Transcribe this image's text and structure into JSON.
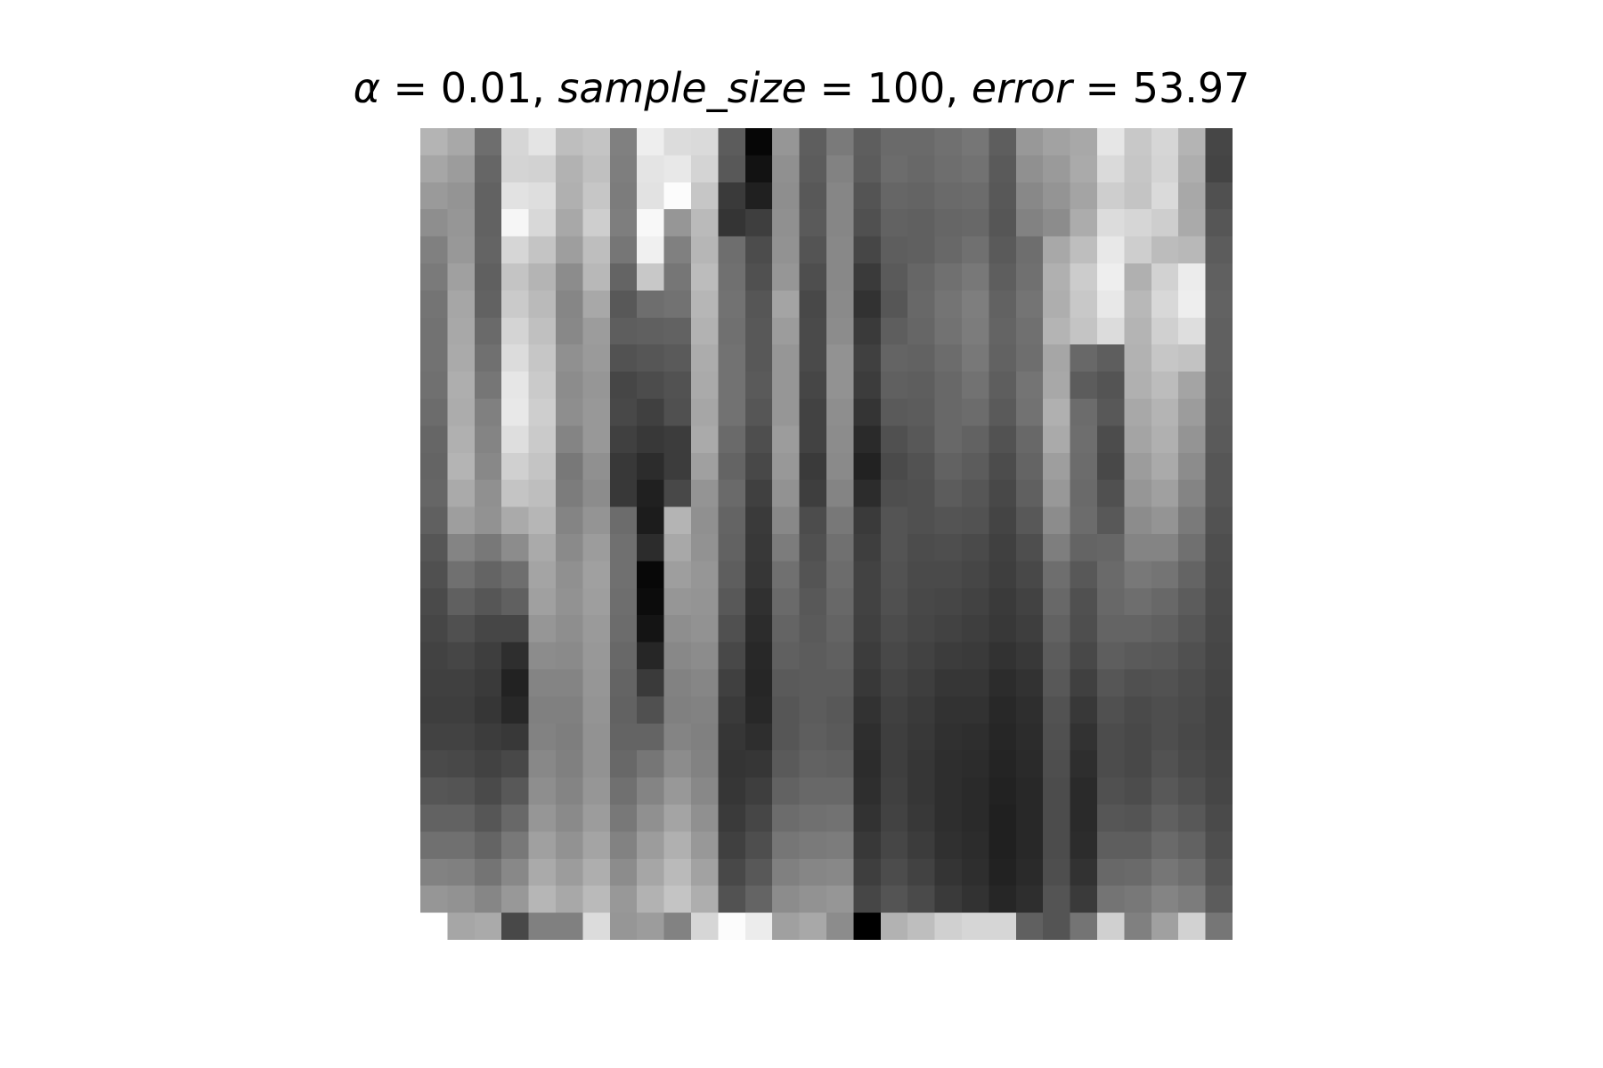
{
  "chart_data": {
    "type": "heatmap",
    "title": {
      "alpha_symbol": "α",
      "alpha_value": "0.01",
      "sample_size_name": "sample_size",
      "sample_size_value": "100",
      "error_name": "error",
      "error_value": "53.97"
    },
    "colormap": "gray",
    "axes": "off",
    "rows": 30,
    "cols": 30,
    "values": [
      [
        180,
        168,
        110,
        214,
        228,
        190,
        196,
        128,
        238,
        220,
        218,
        92,
        6,
        150,
        94,
        122,
        94,
        106,
        106,
        112,
        118,
        94,
        152,
        162,
        168,
        230,
        200,
        214,
        180,
        70
      ],
      [
        166,
        156,
        102,
        212,
        210,
        178,
        192,
        126,
        228,
        232,
        212,
        88,
        18,
        144,
        92,
        130,
        92,
        108,
        104,
        110,
        114,
        90,
        144,
        154,
        170,
        218,
        198,
        212,
        174,
        68
      ],
      [
        154,
        148,
        98,
        226,
        222,
        176,
        198,
        124,
        226,
        252,
        198,
        58,
        32,
        142,
        88,
        134,
        84,
        102,
        100,
        106,
        108,
        88,
        136,
        148,
        164,
        206,
        196,
        218,
        168,
        80
      ],
      [
        142,
        150,
        98,
        246,
        216,
        168,
        206,
        126,
        248,
        150,
        186,
        52,
        62,
        144,
        90,
        134,
        80,
        98,
        96,
        102,
        104,
        86,
        130,
        140,
        172,
        220,
        214,
        206,
        170,
        86
      ],
      [
        128,
        152,
        100,
        214,
        196,
        158,
        190,
        118,
        240,
        128,
        182,
        110,
        76,
        146,
        84,
        136,
        70,
        94,
        96,
        104,
        112,
        90,
        110,
        168,
        190,
        232,
        206,
        188,
        184,
        92
      ],
      [
        122,
        160,
        96,
        196,
        180,
        140,
        184,
        100,
        200,
        118,
        188,
        112,
        80,
        150,
        78,
        136,
        58,
        90,
        102,
        112,
        120,
        94,
        112,
        176,
        204,
        238,
        176,
        210,
        236,
        96
      ],
      [
        116,
        166,
        98,
        202,
        186,
        134,
        168,
        88,
        110,
        114,
        182,
        114,
        86,
        164,
        72,
        138,
        50,
        86,
        104,
        116,
        126,
        98,
        116,
        174,
        200,
        232,
        184,
        216,
        238,
        98
      ],
      [
        114,
        168,
        106,
        212,
        192,
        136,
        156,
        94,
        96,
        98,
        178,
        112,
        88,
        156,
        74,
        140,
        58,
        94,
        102,
        114,
        124,
        100,
        112,
        180,
        196,
        220,
        180,
        208,
        222,
        96
      ],
      [
        114,
        170,
        112,
        220,
        198,
        144,
        154,
        82,
        86,
        90,
        172,
        114,
        88,
        150,
        74,
        146,
        64,
        100,
        98,
        108,
        120,
        98,
        110,
        166,
        104,
        94,
        178,
        198,
        194,
        96
      ],
      [
        112,
        174,
        118,
        230,
        202,
        140,
        150,
        70,
        76,
        82,
        170,
        114,
        90,
        150,
        70,
        146,
        60,
        96,
        94,
        104,
        114,
        94,
        116,
        168,
        92,
        84,
        176,
        188,
        164,
        94
      ],
      [
        108,
        172,
        128,
        232,
        206,
        142,
        152,
        72,
        64,
        80,
        166,
        114,
        86,
        150,
        66,
        142,
        52,
        90,
        92,
        104,
        108,
        90,
        114,
        176,
        108,
        88,
        168,
        180,
        156,
        92
      ],
      [
        102,
        176,
        132,
        222,
        202,
        132,
        152,
        64,
        56,
        60,
        170,
        106,
        78,
        156,
        66,
        140,
        42,
        80,
        88,
        104,
        98,
        82,
        104,
        170,
        110,
        76,
        164,
        176,
        148,
        90
      ],
      [
        100,
        180,
        136,
        208,
        196,
        120,
        144,
        56,
        44,
        60,
        160,
        100,
        72,
        152,
        58,
        138,
        34,
        74,
        82,
        98,
        92,
        76,
        100,
        158,
        108,
        72,
        156,
        170,
        140,
        86
      ],
      [
        102,
        170,
        144,
        196,
        190,
        124,
        140,
        56,
        32,
        72,
        148,
        106,
        64,
        146,
        62,
        132,
        44,
        78,
        80,
        92,
        86,
        72,
        96,
        152,
        106,
        80,
        150,
        160,
        132,
        86
      ],
      [
        96,
        158,
        146,
        170,
        182,
        132,
        148,
        108,
        28,
        180,
        144,
        100,
        58,
        136,
        76,
        120,
        58,
        84,
        80,
        84,
        82,
        68,
        88,
        140,
        108,
        88,
        140,
        148,
        122,
        82
      ],
      [
        86,
        132,
        120,
        140,
        170,
        138,
        156,
        112,
        44,
        168,
        146,
        98,
        56,
        124,
        80,
        112,
        62,
        84,
        76,
        78,
        74,
        64,
        78,
        126,
        100,
        102,
        132,
        132,
        112,
        78
      ],
      [
        80,
        112,
        100,
        110,
        164,
        144,
        160,
        112,
        8,
        158,
        150,
        94,
        54,
        112,
        84,
        108,
        66,
        82,
        74,
        74,
        70,
        62,
        72,
        110,
        88,
        106,
        120,
        116,
        100,
        76
      ],
      [
        74,
        96,
        86,
        96,
        160,
        146,
        158,
        110,
        12,
        150,
        148,
        88,
        48,
        106,
        88,
        104,
        66,
        80,
        72,
        70,
        66,
        58,
        66,
        104,
        80,
        104,
        110,
        104,
        92,
        74
      ],
      [
        70,
        80,
        70,
        70,
        150,
        142,
        154,
        108,
        20,
        142,
        146,
        80,
        44,
        100,
        90,
        100,
        64,
        76,
        70,
        66,
        62,
        56,
        62,
        98,
        78,
        100,
        100,
        96,
        86,
        72
      ],
      [
        66,
        70,
        62,
        46,
        140,
        138,
        152,
        104,
        38,
        136,
        140,
        72,
        40,
        96,
        92,
        96,
        60,
        72,
        66,
        60,
        58,
        50,
        56,
        92,
        72,
        94,
        90,
        88,
        80,
        70
      ],
      [
        64,
        64,
        58,
        34,
        132,
        132,
        150,
        100,
        58,
        130,
        134,
        64,
        38,
        90,
        92,
        92,
        56,
        68,
        62,
        54,
        54,
        44,
        50,
        88,
        64,
        86,
        80,
        82,
        76,
        68
      ],
      [
        62,
        62,
        54,
        40,
        128,
        128,
        148,
        98,
        80,
        128,
        130,
        58,
        40,
        86,
        92,
        88,
        50,
        64,
        58,
        50,
        50,
        40,
        46,
        82,
        56,
        80,
        74,
        78,
        74,
        66
      ],
      [
        66,
        66,
        60,
        56,
        130,
        126,
        146,
        100,
        100,
        132,
        128,
        54,
        46,
        86,
        94,
        90,
        46,
        62,
        56,
        48,
        46,
        38,
        44,
        80,
        50,
        76,
        72,
        78,
        72,
        66
      ],
      [
        74,
        72,
        66,
        72,
        136,
        128,
        146,
        104,
        118,
        140,
        130,
        52,
        54,
        90,
        98,
        96,
        44,
        62,
        54,
        46,
        44,
        36,
        42,
        78,
        46,
        76,
        72,
        82,
        74,
        68
      ],
      [
        86,
        84,
        74,
        88,
        142,
        132,
        150,
        112,
        132,
        152,
        136,
        54,
        62,
        98,
        104,
        104,
        46,
        64,
        54,
        46,
        42,
        34,
        40,
        76,
        42,
        80,
        76,
        88,
        80,
        70
      ],
      [
        98,
        98,
        86,
        104,
        150,
        138,
        156,
        120,
        144,
        164,
        144,
        58,
        70,
        108,
        112,
        114,
        50,
        66,
        56,
        46,
        42,
        32,
        40,
        76,
        42,
        86,
        84,
        96,
        88,
        74
      ],
      [
        112,
        112,
        100,
        120,
        160,
        146,
        164,
        130,
        156,
        176,
        152,
        64,
        78,
        118,
        122,
        124,
        56,
        70,
        60,
        48,
        44,
        32,
        40,
        76,
        44,
        94,
        94,
        106,
        98,
        78
      ],
      [
        130,
        128,
        116,
        136,
        170,
        156,
        174,
        140,
        166,
        186,
        162,
        72,
        88,
        128,
        134,
        136,
        62,
        76,
        66,
        52,
        46,
        34,
        42,
        78,
        50,
        104,
        106,
        118,
        110,
        84
      ],
      [
        150,
        146,
        134,
        152,
        182,
        168,
        186,
        152,
        178,
        196,
        174,
        82,
        100,
        140,
        146,
        150,
        70,
        84,
        74,
        58,
        50,
        38,
        46,
        84,
        58,
        116,
        120,
        132,
        124,
        92
      ],
      [
        255,
        166,
        170,
        72,
        128,
        128,
        220,
        150,
        156,
        130,
        214,
        252,
        236,
        160,
        168,
        140,
        0,
        178,
        190,
        208,
        214,
        214,
        96,
        84,
        116,
        208,
        128,
        160,
        210,
        118
      ]
    ]
  }
}
